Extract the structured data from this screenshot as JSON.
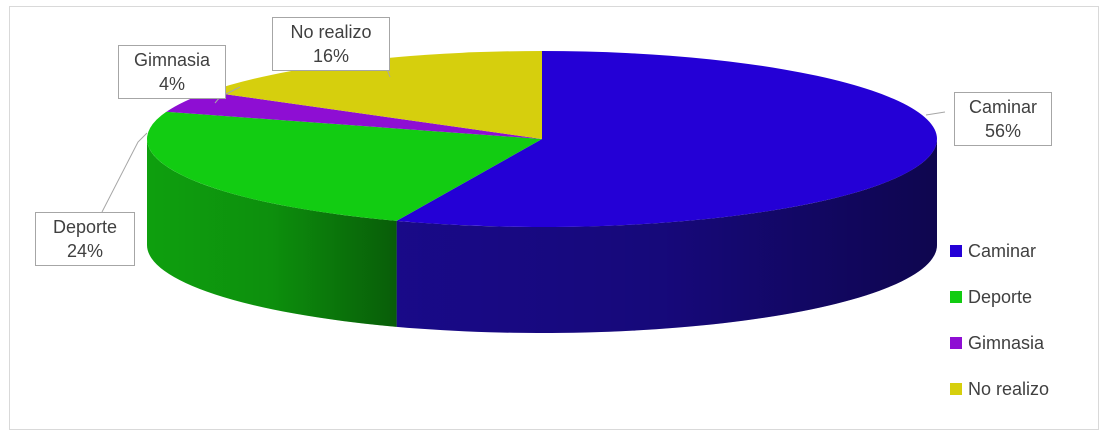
{
  "chart_data": {
    "type": "pie",
    "title": "",
    "categories": [
      "Caminar",
      "Deporte",
      "Gimnasia",
      "No realizo"
    ],
    "values": [
      56,
      24,
      4,
      16
    ],
    "value_labels": [
      "56%",
      "24%",
      "4%",
      "16%"
    ],
    "colors": [
      "#2400d6",
      "#12cc12",
      "#8e0ed3",
      "#d6cf0d"
    ],
    "side_colors": [
      "#1a0a8f",
      "#0fa80f",
      "#6d0aa8",
      "#b0aa0a"
    ],
    "legend_position": "right",
    "style": "3d"
  }
}
